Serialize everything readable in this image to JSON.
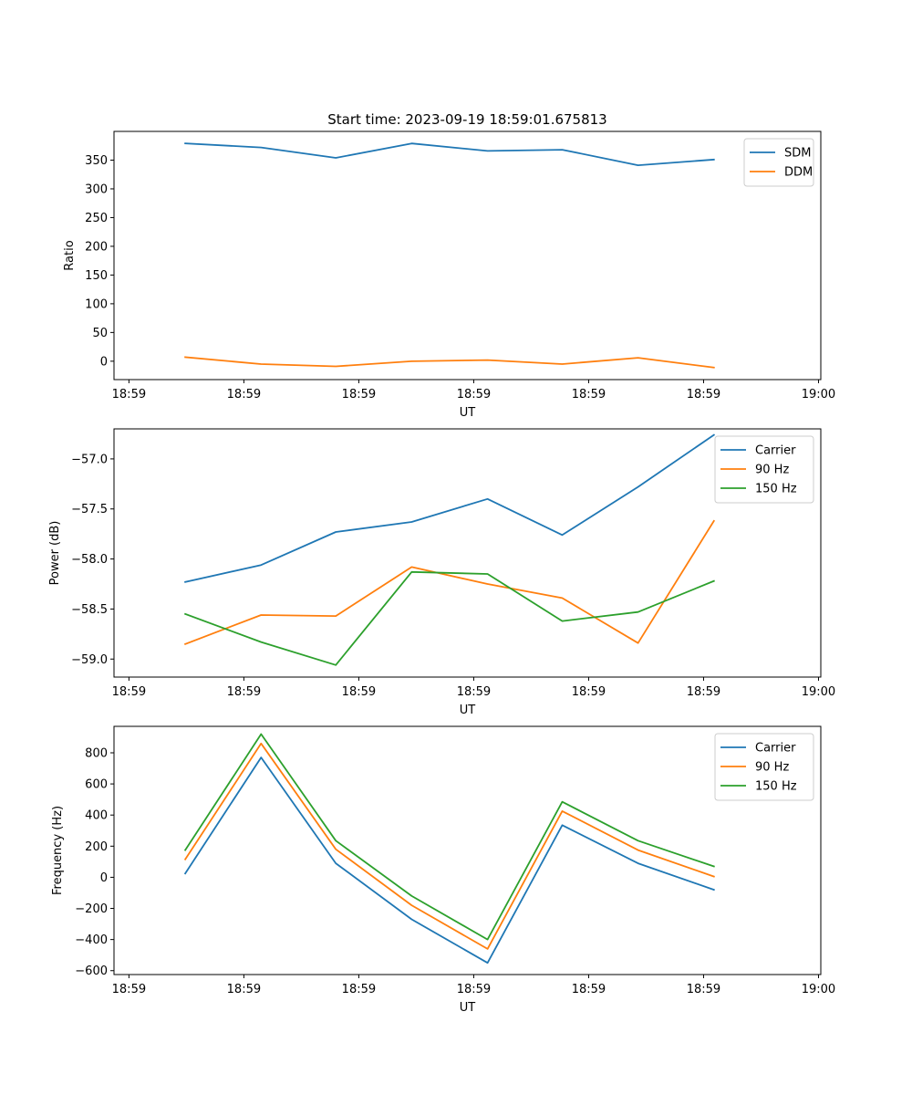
{
  "chart_data": [
    {
      "type": "line",
      "title": "Start time: 2023-09-19 18:59:01.675813",
      "xlabel": "UT",
      "ylabel": "Ratio",
      "xticks": [
        0,
        1,
        2,
        3,
        4,
        5,
        6
      ],
      "xticklabels": [
        "18:59",
        "18:59",
        "18:59",
        "18:59",
        "18:59",
        "18:59",
        "19:00"
      ],
      "xlim": [
        -0.13,
        6.02
      ],
      "ylim": [
        -32,
        400
      ],
      "yticks": [
        0,
        50,
        100,
        150,
        200,
        250,
        300,
        350
      ],
      "yticklabels": [
        "0",
        "50",
        "100",
        "150",
        "200",
        "250",
        "300",
        "350"
      ],
      "x": [
        0.49,
        1.15,
        1.8,
        2.46,
        3.12,
        3.77,
        4.43,
        5.09
      ],
      "legend_loc": "upper right",
      "series": [
        {
          "name": "SDM",
          "color": "#1f77b4",
          "values": [
            379,
            372,
            354,
            379,
            366,
            368,
            341,
            351
          ]
        },
        {
          "name": "DDM",
          "color": "#ff7f0e",
          "values": [
            7,
            -5,
            -9,
            0,
            2,
            -5,
            6,
            -11
          ]
        }
      ]
    },
    {
      "type": "line",
      "title": "",
      "xlabel": "UT",
      "ylabel": "Power (dB)",
      "xticks": [
        0,
        1,
        2,
        3,
        4,
        5,
        6
      ],
      "xticklabels": [
        "18:59",
        "18:59",
        "18:59",
        "18:59",
        "18:59",
        "18:59",
        "19:00"
      ],
      "xlim": [
        -0.13,
        6.02
      ],
      "ylim": [
        -59.18,
        -56.7
      ],
      "yticks": [
        -59.0,
        -58.5,
        -58.0,
        -57.5,
        -57.0
      ],
      "yticklabels": [
        "−59.0",
        "−58.5",
        "−58.0",
        "−57.5",
        "−57.0"
      ],
      "x": [
        0.49,
        1.15,
        1.8,
        2.46,
        3.12,
        3.77,
        4.43,
        5.09
      ],
      "legend_loc": "upper right",
      "series": [
        {
          "name": "Carrier",
          "color": "#1f77b4",
          "values": [
            -58.23,
            -58.06,
            -57.73,
            -57.63,
            -57.4,
            -57.76,
            -57.28,
            -56.76
          ]
        },
        {
          "name": "90 Hz",
          "color": "#ff7f0e",
          "values": [
            -58.85,
            -58.56,
            -58.57,
            -58.08,
            -58.25,
            -58.39,
            -58.84,
            -57.62
          ]
        },
        {
          "name": "150 Hz",
          "color": "#2ca02c",
          "values": [
            -58.55,
            -58.83,
            -59.06,
            -58.13,
            -58.15,
            -58.62,
            -58.53,
            -58.22
          ]
        }
      ]
    },
    {
      "type": "line",
      "title": "",
      "xlabel": "UT",
      "ylabel": "Frequency (Hz)",
      "xticks": [
        0,
        1,
        2,
        3,
        4,
        5,
        6
      ],
      "xticklabels": [
        "18:59",
        "18:59",
        "18:59",
        "18:59",
        "18:59",
        "18:59",
        "19:00"
      ],
      "xlim": [
        -0.13,
        6.02
      ],
      "ylim": [
        -625,
        970
      ],
      "yticks": [
        -600,
        -400,
        -200,
        0,
        200,
        400,
        600,
        800
      ],
      "yticklabels": [
        "−600",
        "−400",
        "−200",
        "0",
        "200",
        "400",
        "600",
        "800"
      ],
      "x": [
        0.49,
        1.15,
        1.8,
        2.46,
        3.12,
        3.77,
        4.43,
        5.09
      ],
      "legend_loc": "upper right",
      "series": [
        {
          "name": "Carrier",
          "color": "#1f77b4",
          "values": [
            25,
            770,
            90,
            -270,
            -550,
            335,
            90,
            -80
          ]
        },
        {
          "name": "90 Hz",
          "color": "#ff7f0e",
          "values": [
            115,
            860,
            180,
            -180,
            -460,
            425,
            175,
            5
          ]
        },
        {
          "name": "150 Hz",
          "color": "#2ca02c",
          "values": [
            175,
            920,
            235,
            -120,
            -400,
            485,
            235,
            70
          ]
        }
      ]
    }
  ]
}
